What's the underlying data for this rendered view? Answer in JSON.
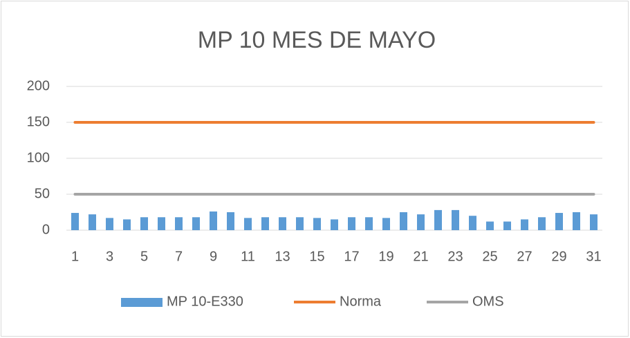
{
  "chart_data": {
    "type": "bar",
    "title": "MP 10 MES DE MAYO",
    "categories": [
      1,
      null,
      3,
      null,
      5,
      null,
      7,
      null,
      9,
      null,
      11,
      null,
      13,
      null,
      15,
      null,
      17,
      null,
      19,
      null,
      21,
      null,
      23,
      null,
      25,
      null,
      27,
      null,
      29,
      null,
      31
    ],
    "series": [
      {
        "name": "MP 10-E330",
        "type": "bar",
        "color": "#5b9bd5",
        "values": [
          24,
          22,
          17,
          15,
          18,
          18,
          18,
          18,
          26,
          25,
          17,
          18,
          18,
          18,
          17,
          15,
          18,
          18,
          17,
          25,
          22,
          28,
          28,
          20,
          12,
          12,
          15,
          18,
          24,
          25,
          22
        ]
      },
      {
        "name": "Norma",
        "type": "line",
        "color": "#ed7d31",
        "values": [
          150,
          150,
          150,
          150,
          150,
          150,
          150,
          150,
          150,
          150,
          150,
          150,
          150,
          150,
          150,
          150,
          150,
          150,
          150,
          150,
          150,
          150,
          150,
          150,
          150,
          150,
          150,
          150,
          150,
          150,
          150
        ]
      },
      {
        "name": "OMS",
        "type": "line",
        "color": "#a5a5a5",
        "values": [
          50,
          50,
          50,
          50,
          50,
          50,
          50,
          50,
          50,
          50,
          50,
          50,
          50,
          50,
          50,
          50,
          50,
          50,
          50,
          50,
          50,
          50,
          50,
          50,
          50,
          50,
          50,
          50,
          50,
          50,
          50
        ]
      }
    ],
    "ylim": [
      0,
      200
    ],
    "yticks": [
      0,
      50,
      100,
      150,
      200
    ],
    "grid": true,
    "legend": "bottom"
  }
}
